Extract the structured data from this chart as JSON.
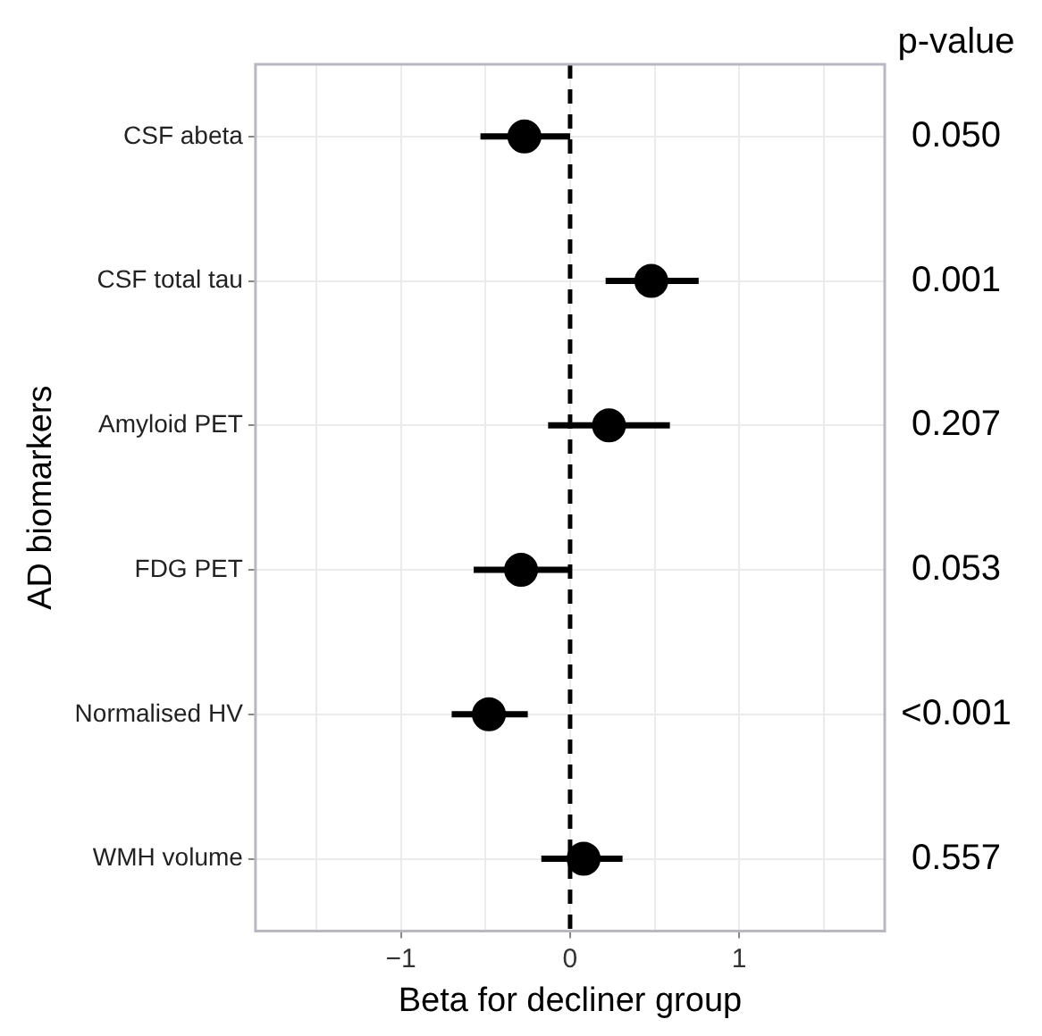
{
  "chart_data": {
    "type": "scatter",
    "orientation": "horizontal",
    "xlabel": "Beta for decliner group",
    "ylabel": "AD biomarkers",
    "categories": [
      "CSF abeta",
      "CSF total tau",
      "Amyloid PET",
      "FDG PET",
      "Normalised HV",
      "WMH volume"
    ],
    "series": [
      {
        "color": "#000000",
        "values": [
          -0.27,
          0.48,
          0.23,
          -0.29,
          -0.48,
          0.08
        ],
        "errors": [
          [
            -0.53,
            0.0
          ],
          [
            0.21,
            0.76
          ],
          [
            -0.13,
            0.59
          ],
          [
            -0.57,
            0.0
          ],
          [
            -0.7,
            -0.25
          ],
          [
            -0.17,
            0.31
          ]
        ]
      }
    ],
    "xlim": [
      -1.86,
      1.86
    ],
    "xticks": [
      {
        "value": -1.5,
        "label": null
      },
      -1,
      {
        "value": -0.5,
        "label": null
      },
      0,
      {
        "value": 0.5,
        "label": null
      },
      1,
      {
        "value": 1.5,
        "label": null
      }
    ],
    "grid": true,
    "marker": "circle",
    "ref_lines": [
      {
        "axis": "x",
        "value": 0,
        "line_style": "dashed",
        "color": "#000000"
      }
    ],
    "annotations": [
      "p-value",
      "0.050",
      "0.001",
      "0.207",
      "0.053",
      "<0.001",
      "0.557"
    ]
  }
}
